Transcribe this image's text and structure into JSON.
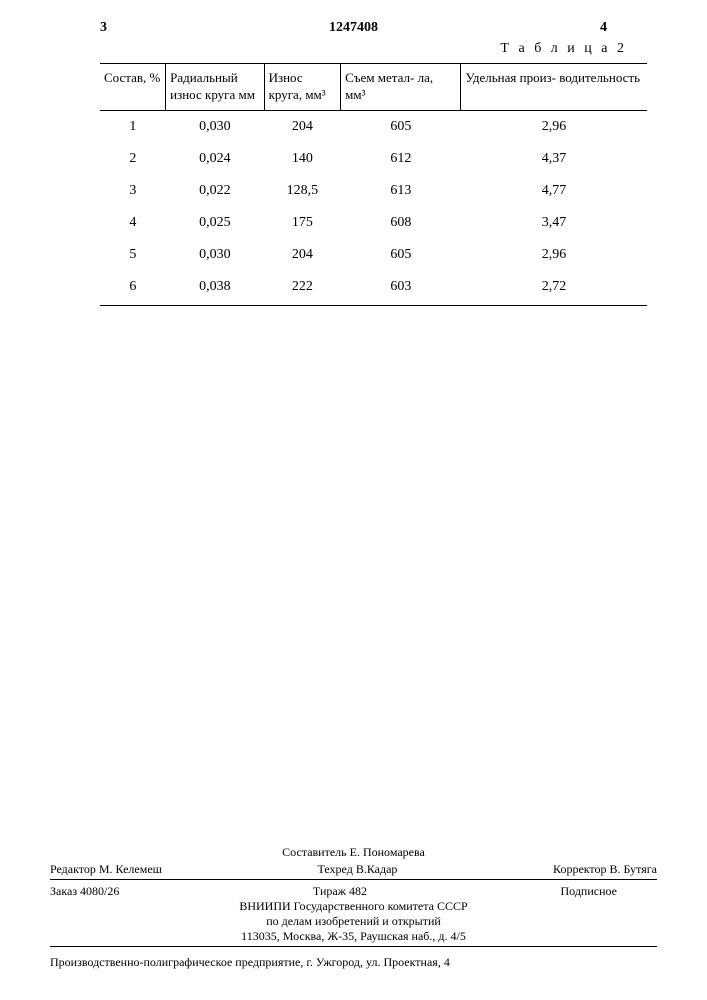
{
  "header": {
    "left_num": "3",
    "doc_number": "1247408",
    "right_num": "4"
  },
  "table": {
    "caption": "Т а б л и ц а  2",
    "columns": [
      {
        "key": "c1",
        "label": "Состав, %"
      },
      {
        "key": "c2",
        "label": "Радиальный износ круга мм"
      },
      {
        "key": "c3",
        "label": "Износ круга, мм³"
      },
      {
        "key": "c4",
        "label": "Съем метал- ла, мм³"
      },
      {
        "key": "c5",
        "label": "Удельная произ- водительность"
      }
    ],
    "rows": [
      {
        "c1": "1",
        "c2": "0,030",
        "c3": "204",
        "c4": "605",
        "c5": "2,96"
      },
      {
        "c1": "2",
        "c2": "0,024",
        "c3": "140",
        "c4": "612",
        "c5": "4,37"
      },
      {
        "c1": "3",
        "c2": "0,022",
        "c3": "128,5",
        "c4": "613",
        "c5": "4,77"
      },
      {
        "c1": "4",
        "c2": "0,025",
        "c3": "175",
        "c4": "608",
        "c5": "3,47"
      },
      {
        "c1": "5",
        "c2": "0,030",
        "c3": "204",
        "c4": "605",
        "c5": "2,96"
      },
      {
        "c1": "6",
        "c2": "0,038",
        "c3": "222",
        "c4": "603",
        "c5": "2,72"
      }
    ],
    "col_widths": [
      "12%",
      "18%",
      "14%",
      "22%",
      "34%"
    ]
  },
  "footer": {
    "compiler": "Составитель Е. Пономарева",
    "editor": "Редактор М. Келемеш",
    "tech": "Техред В.Кадар",
    "corrector": "Корректор   В. Бутяга",
    "order": "Заказ 4080/26",
    "circulation": "Тираж 482",
    "subscription": "Подписное",
    "institute1": "ВНИИПИ Государственного комитета СССР",
    "institute2": "по делам изобретений и открытий",
    "institute3": "113035, Москва, Ж-35, Раушская наб., д. 4/5",
    "printer": "Производственно-полиграфическое предприятие, г. Ужгород, ул. Проектная, 4"
  }
}
